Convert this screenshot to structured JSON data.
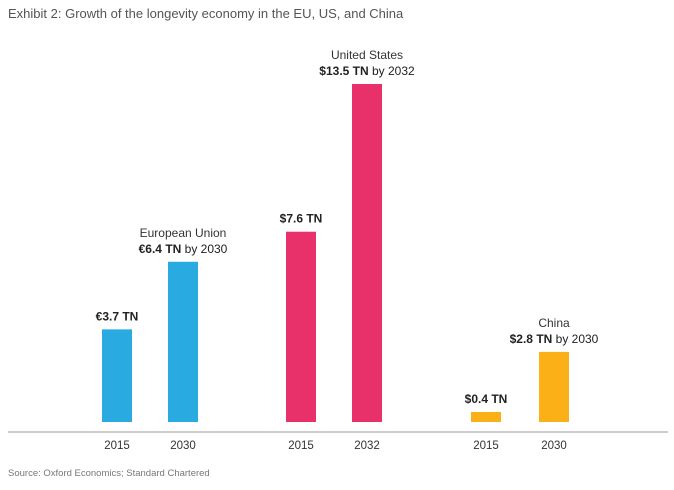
{
  "title": "Exhibit 2: Growth of the longevity economy in the EU, US, and China",
  "source": "Source: Oxford Economics; Standard Chartered",
  "colors": {
    "eu": "#29abe2",
    "us": "#e8306a",
    "china": "#fbb017",
    "axis": "#999999"
  },
  "chart_data": {
    "type": "bar",
    "ylim": [
      0,
      14
    ],
    "grid": false,
    "groups": [
      {
        "name": "European Union",
        "color_key": "eu",
        "bars": [
          {
            "x": "2015",
            "value": 3.7,
            "label": "€3.7 TN",
            "label_suffix": "",
            "region_label": ""
          },
          {
            "x": "2030",
            "value": 6.4,
            "label": "€6.4 TN",
            "label_suffix": " by 2030",
            "region_label": "European Union"
          }
        ]
      },
      {
        "name": "United States",
        "color_key": "us",
        "bars": [
          {
            "x": "2015",
            "value": 7.6,
            "label": "$7.6 TN",
            "label_suffix": "",
            "region_label": ""
          },
          {
            "x": "2032",
            "value": 13.5,
            "label": "$13.5 TN",
            "label_suffix": " by 2032",
            "region_label": "United States"
          }
        ]
      },
      {
        "name": "China",
        "color_key": "china",
        "bars": [
          {
            "x": "2015",
            "value": 0.4,
            "label": "$0.4 TN",
            "label_suffix": "",
            "region_label": ""
          },
          {
            "x": "2030",
            "value": 2.8,
            "label": "$2.8 TN",
            "label_suffix": " by 2030",
            "region_label": "China"
          }
        ]
      }
    ]
  }
}
